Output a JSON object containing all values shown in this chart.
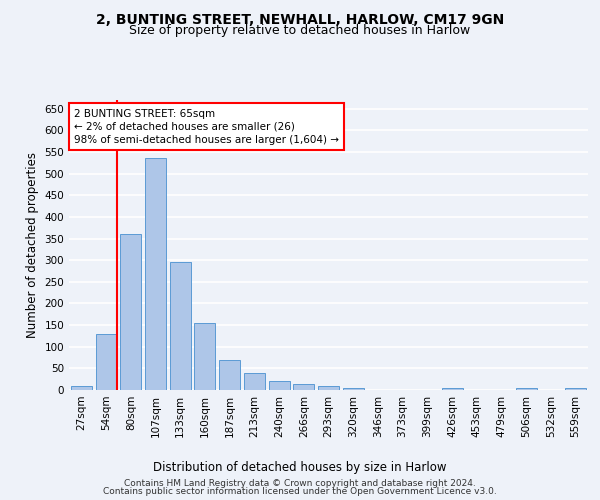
{
  "title1": "2, BUNTING STREET, NEWHALL, HARLOW, CM17 9GN",
  "title2": "Size of property relative to detached houses in Harlow",
  "xlabel": "Distribution of detached houses by size in Harlow",
  "ylabel": "Number of detached properties",
  "categories": [
    "27sqm",
    "54sqm",
    "80sqm",
    "107sqm",
    "133sqm",
    "160sqm",
    "187sqm",
    "213sqm",
    "240sqm",
    "266sqm",
    "293sqm",
    "320sqm",
    "346sqm",
    "373sqm",
    "399sqm",
    "426sqm",
    "453sqm",
    "479sqm",
    "506sqm",
    "532sqm",
    "559sqm"
  ],
  "values": [
    10,
    130,
    360,
    535,
    295,
    155,
    70,
    40,
    20,
    15,
    10,
    5,
    0,
    0,
    0,
    5,
    0,
    0,
    5,
    0,
    5
  ],
  "bar_color": "#aec6e8",
  "bar_edge_color": "#5b9bd5",
  "annotation_text": "2 BUNTING STREET: 65sqm\n← 2% of detached houses are smaller (26)\n98% of semi-detached houses are larger (1,604) →",
  "annotation_box_color": "white",
  "annotation_box_edge_color": "red",
  "vline_x_index": 1,
  "vline_color": "red",
  "ylim": [
    0,
    670
  ],
  "yticks": [
    0,
    50,
    100,
    150,
    200,
    250,
    300,
    350,
    400,
    450,
    500,
    550,
    600,
    650
  ],
  "footer1": "Contains HM Land Registry data © Crown copyright and database right 2024.",
  "footer2": "Contains public sector information licensed under the Open Government Licence v3.0.",
  "bg_color": "#eef2f9",
  "plot_bg_color": "#eef2f9",
  "grid_color": "white",
  "title1_fontsize": 10,
  "title2_fontsize": 9,
  "tick_fontsize": 7.5,
  "label_fontsize": 8.5,
  "footer_fontsize": 6.5
}
